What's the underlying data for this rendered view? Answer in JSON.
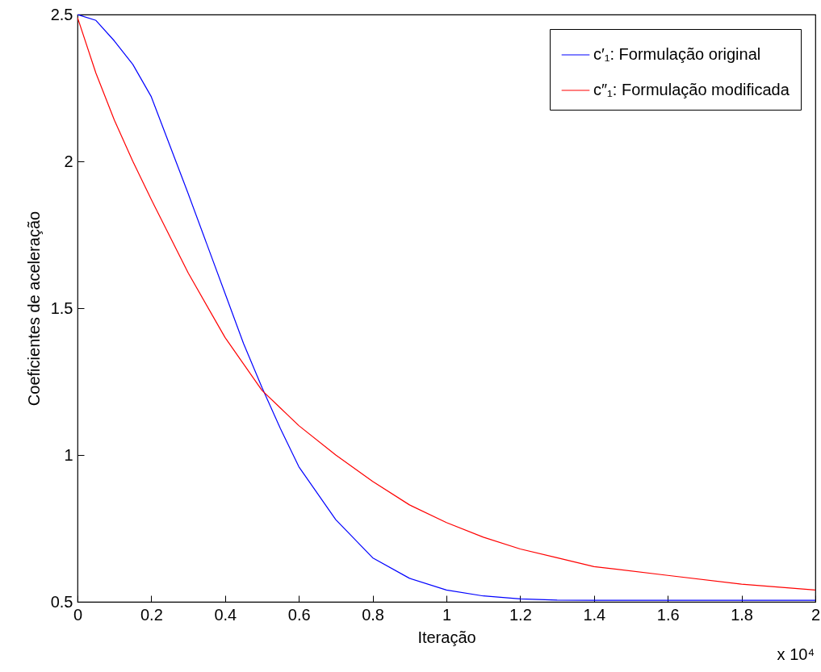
{
  "chart_data": {
    "type": "line",
    "xlabel": "Iteração",
    "ylabel": "Coeficientes de aceleração",
    "annotations": [
      "x 10⁴"
    ],
    "x": [
      0,
      0.05,
      0.1,
      0.15,
      0.2,
      0.3,
      0.4,
      0.45,
      0.5,
      0.55,
      0.6,
      0.7,
      0.8,
      0.9,
      1.0,
      1.1,
      1.2,
      1.3,
      1.4,
      1.6,
      1.8,
      2.0
    ],
    "series": [
      {
        "name": "c′₁: Formulação original",
        "color": "#0000ff",
        "values": [
          2.5,
          2.48,
          2.41,
          2.33,
          2.22,
          1.89,
          1.55,
          1.38,
          1.23,
          1.09,
          0.96,
          0.78,
          0.65,
          0.58,
          0.54,
          0.52,
          0.51,
          0.506,
          0.505,
          0.505,
          0.505,
          0.505
        ]
      },
      {
        "name": "c″₁: Formulação modificada",
        "color": "#ff0000",
        "values": [
          2.49,
          2.3,
          2.14,
          2.0,
          1.87,
          1.62,
          1.4,
          1.31,
          1.22,
          1.16,
          1.1,
          1.0,
          0.91,
          0.83,
          0.77,
          0.72,
          0.68,
          0.65,
          0.62,
          0.59,
          0.56,
          0.54
        ]
      }
    ],
    "xlim": [
      0,
      2
    ],
    "xticks": [
      0,
      0.2,
      0.4,
      0.6,
      0.8,
      1,
      1.2,
      1.4,
      1.6,
      1.8,
      2
    ],
    "ylim": [
      0.5,
      2.5
    ],
    "yticks": [
      0.5,
      1,
      1.5,
      2,
      2.5
    ],
    "grid": false,
    "legend": "top right",
    "marker": "none",
    "line_style": "solid"
  }
}
